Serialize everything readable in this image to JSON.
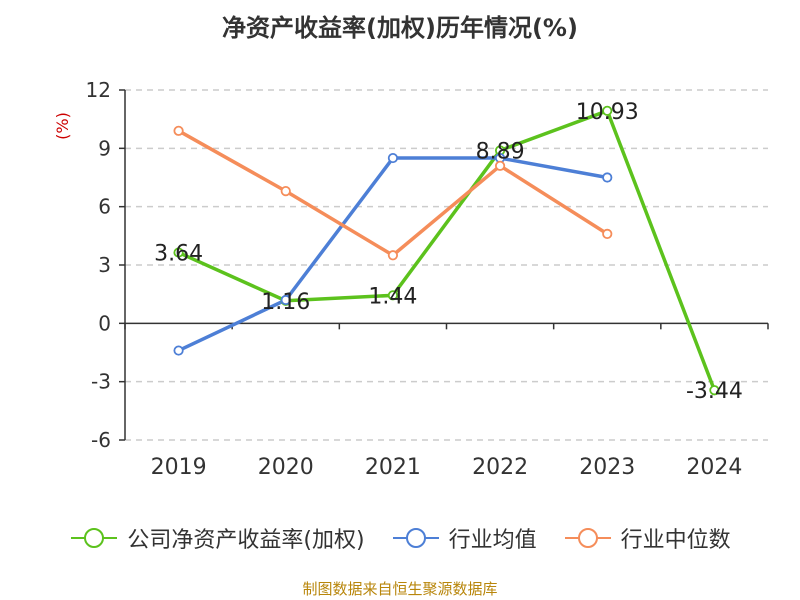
{
  "chart_data": {
    "type": "line",
    "title": "净资产收益率(加权)历年情况(%)",
    "ylabel": "(%)",
    "categories": [
      "2019",
      "2020",
      "2021",
      "2022",
      "2023",
      "2024"
    ],
    "ylim": [
      -6,
      12
    ],
    "yticks": [
      12,
      9,
      6,
      3,
      0,
      -3,
      -6
    ],
    "grid": true,
    "legend_position": "bottom",
    "series": [
      {
        "name": "公司净资产收益率(加权)",
        "color": "#5cc21d",
        "values": [
          3.64,
          1.16,
          1.44,
          8.89,
          10.93,
          -3.44
        ],
        "labels": [
          "3.64",
          "1.16",
          "1.44",
          "8.89",
          "10.93",
          "-3.44"
        ]
      },
      {
        "name": "行业均值",
        "color": "#4d7fd6",
        "values": [
          -1.4,
          1.2,
          8.5,
          8.5,
          7.5,
          null
        ]
      },
      {
        "name": "行业中位数",
        "color": "#f58d5a",
        "values": [
          9.9,
          6.8,
          3.5,
          8.1,
          4.6,
          null
        ]
      }
    ]
  },
  "source": "制图数据来自恒生聚源数据库"
}
